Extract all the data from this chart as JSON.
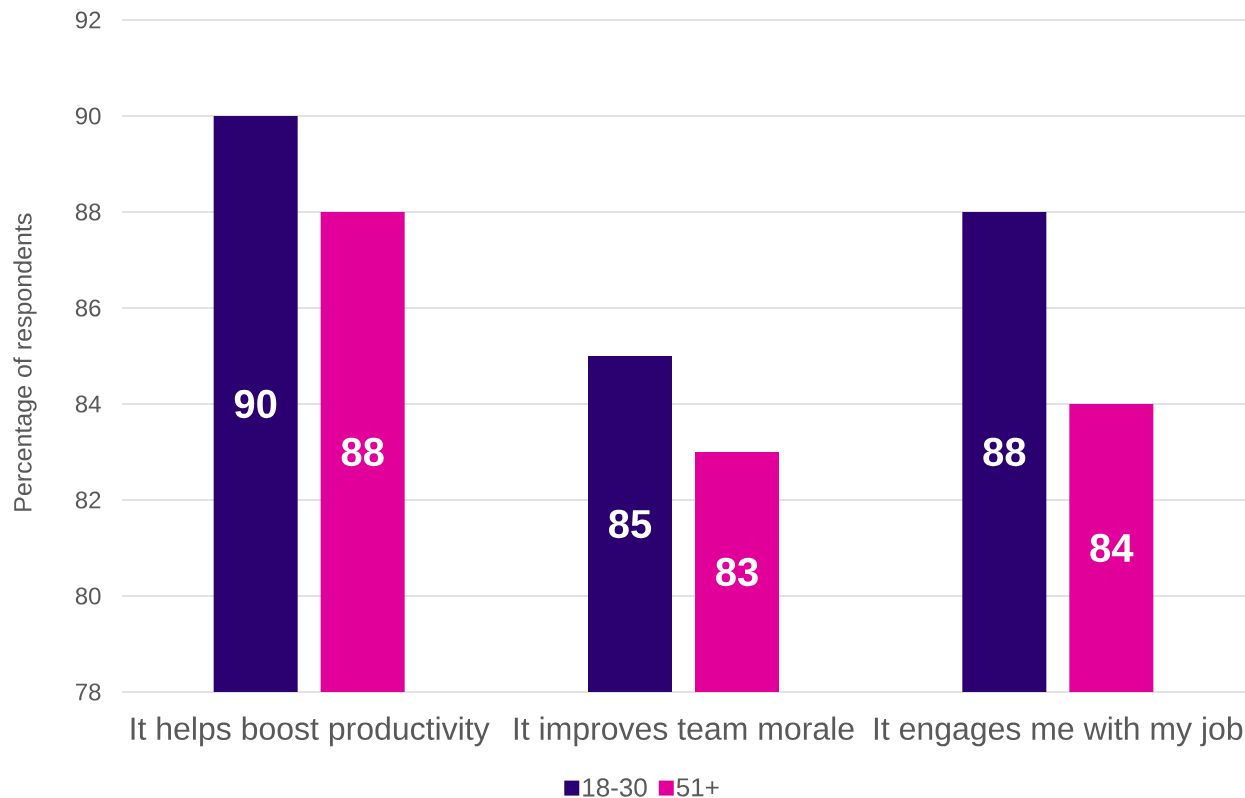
{
  "chart_data": {
    "type": "bar",
    "ylabel": "Percentage of respondents",
    "categories": [
      "It helps boost productivity",
      "It improves team morale",
      "It engages me with my job"
    ],
    "series": [
      {
        "name": "18-30",
        "color": "#2b0070",
        "values": [
          90,
          85,
          88
        ]
      },
      {
        "name": "51+",
        "color": "#e2009b",
        "values": [
          88,
          83,
          84
        ]
      }
    ],
    "ylim": [
      78,
      92
    ],
    "yticks": [
      78,
      80,
      82,
      84,
      86,
      88,
      90,
      92
    ],
    "grid": "y",
    "legend": "bottom",
    "data_labels": true
  }
}
